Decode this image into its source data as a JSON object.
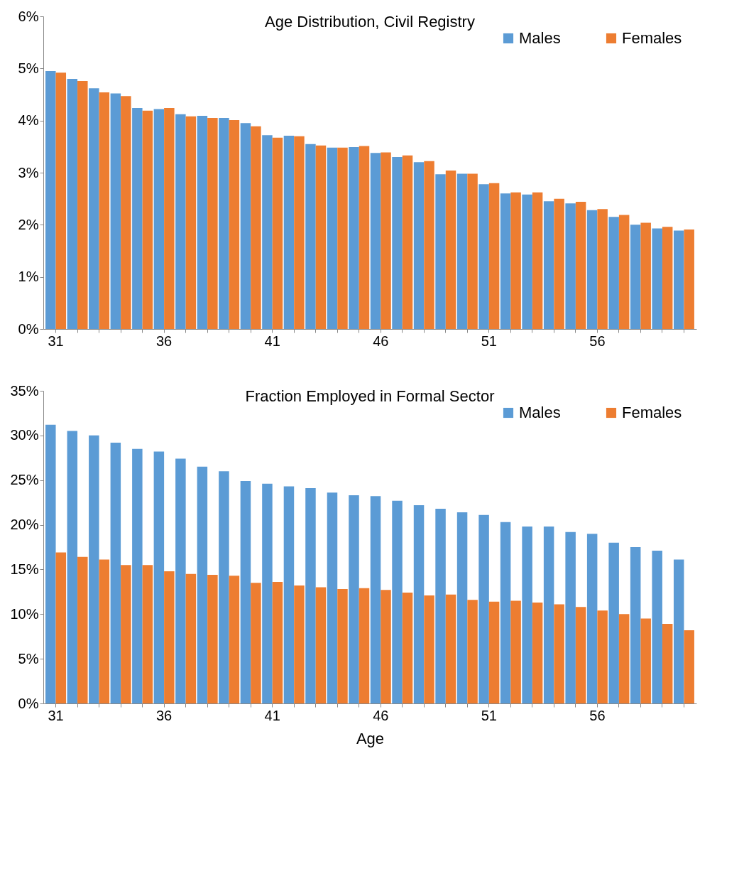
{
  "chart_data": [
    {
      "type": "bar",
      "title": "Age Distribution, Civil Registry",
      "categories": [
        "31",
        null,
        null,
        null,
        null,
        "36",
        null,
        null,
        null,
        null,
        "41",
        null,
        null,
        null,
        null,
        "46",
        null,
        null,
        null,
        null,
        "51",
        null,
        null,
        null,
        null,
        "56",
        null,
        null,
        null,
        null
      ],
      "series": [
        {
          "name": "Males",
          "color": "#5b9bd5",
          "values": [
            4.95,
            4.8,
            4.62,
            4.52,
            4.24,
            4.22,
            4.12,
            4.09,
            4.05,
            3.95,
            3.72,
            3.71,
            3.55,
            3.48,
            3.49,
            3.38,
            3.3,
            3.2,
            2.97,
            2.98,
            2.78,
            2.6,
            2.58,
            2.45,
            2.41,
            2.28,
            2.15,
            2.0,
            1.93,
            1.89
          ]
        },
        {
          "name": "Females",
          "color": "#ed7d31",
          "values": [
            4.92,
            4.76,
            4.54,
            4.47,
            4.19,
            4.24,
            4.08,
            4.05,
            4.01,
            3.89,
            3.67,
            3.7,
            3.52,
            3.48,
            3.51,
            3.39,
            3.33,
            3.22,
            3.04,
            2.98,
            2.8,
            2.62,
            2.62,
            2.5,
            2.44,
            2.3,
            2.19,
            2.04,
            1.96,
            1.91
          ]
        }
      ],
      "ylim": [
        0,
        6
      ],
      "yticks": [
        {
          "value": 0,
          "label": "0%"
        },
        {
          "value": 1,
          "label": "1%"
        },
        {
          "value": 2,
          "label": "2%"
        },
        {
          "value": 3,
          "label": "3%"
        },
        {
          "value": 4,
          "label": "4%"
        },
        {
          "value": 5,
          "label": "5%"
        },
        {
          "value": 6,
          "label": "6%"
        }
      ],
      "legend": "top right",
      "grid": false
    },
    {
      "type": "bar",
      "title": "Fraction Employed in Formal Sector",
      "xlabel": "Age",
      "categories": [
        "31",
        null,
        null,
        null,
        null,
        "36",
        null,
        null,
        null,
        null,
        "41",
        null,
        null,
        null,
        null,
        "46",
        null,
        null,
        null,
        null,
        "51",
        null,
        null,
        null,
        null,
        "56",
        null,
        null,
        null,
        null
      ],
      "series": [
        {
          "name": "Males",
          "color": "#5b9bd5",
          "values": [
            31.2,
            30.5,
            30.0,
            29.2,
            28.5,
            28.2,
            27.4,
            26.5,
            26.0,
            24.9,
            24.6,
            24.3,
            24.1,
            23.6,
            23.3,
            23.2,
            22.7,
            22.2,
            21.8,
            21.4,
            21.1,
            20.3,
            19.8,
            19.8,
            19.2,
            19.0,
            18.0,
            17.5,
            17.1,
            16.1
          ]
        },
        {
          "name": "Females",
          "color": "#ed7d31",
          "values": [
            16.9,
            16.4,
            16.1,
            15.5,
            15.5,
            14.8,
            14.5,
            14.4,
            14.3,
            13.5,
            13.6,
            13.2,
            13.0,
            12.8,
            12.9,
            12.7,
            12.4,
            12.1,
            12.2,
            11.6,
            11.4,
            11.5,
            11.3,
            11.1,
            10.8,
            10.4,
            10.0,
            9.5,
            8.9,
            8.2
          ]
        }
      ],
      "ylim": [
        0,
        35
      ],
      "yticks": [
        {
          "value": 0,
          "label": "0%"
        },
        {
          "value": 5,
          "label": "5%"
        },
        {
          "value": 10,
          "label": "10%"
        },
        {
          "value": 15,
          "label": "15%"
        },
        {
          "value": 20,
          "label": "20%"
        },
        {
          "value": 25,
          "label": "25%"
        },
        {
          "value": 30,
          "label": "30%"
        },
        {
          "value": 35,
          "label": "35%"
        }
      ],
      "legend": "top right",
      "grid": false
    }
  ]
}
